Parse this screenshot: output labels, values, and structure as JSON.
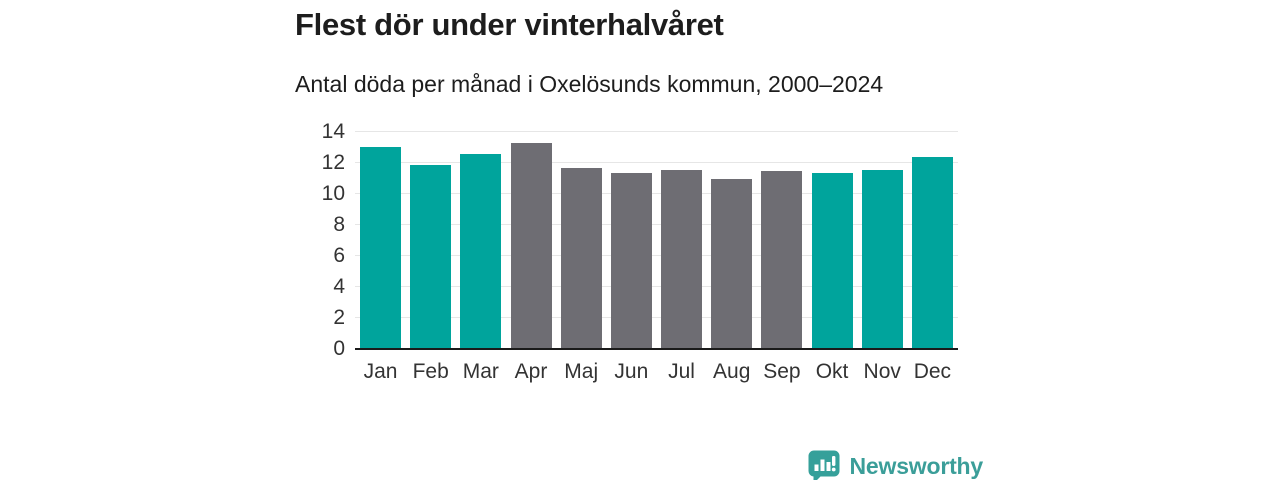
{
  "header": {
    "title": "Flest dör under vinterhalvåret",
    "subtitle": "Antal döda per månad i Oxelösunds kommun, 2000–2024"
  },
  "chart_data": {
    "type": "bar",
    "title": "Flest dör under vinterhalvåret",
    "subtitle": "Antal döda per månad i Oxelösunds kommun, 2000–2024",
    "categories": [
      "Jan",
      "Feb",
      "Mar",
      "Apr",
      "Maj",
      "Jun",
      "Jul",
      "Aug",
      "Sep",
      "Okt",
      "Nov",
      "Dec"
    ],
    "values": [
      13.0,
      11.8,
      12.5,
      13.2,
      11.6,
      11.3,
      11.5,
      10.9,
      11.4,
      11.3,
      11.5,
      12.3
    ],
    "groups": [
      "winter",
      "winter",
      "winter",
      "summer",
      "summer",
      "summer",
      "summer",
      "summer",
      "summer",
      "winter",
      "winter",
      "winter"
    ],
    "group_colors": {
      "winter": "#00a49c",
      "summer": "#6e6d73"
    },
    "yticks": [
      0,
      2,
      4,
      6,
      8,
      10,
      12,
      14
    ],
    "ylim": [
      0,
      14
    ],
    "xlabel": "",
    "ylabel": "",
    "grid": "horizontal",
    "gridline_color": "#e6e6e6",
    "axis_color": "#1a1a1a",
    "legend": "none"
  },
  "footer": {
    "brand": "Newsworthy",
    "brand_color": "#3b9e99",
    "logo_icon_color": "#35a09a"
  }
}
